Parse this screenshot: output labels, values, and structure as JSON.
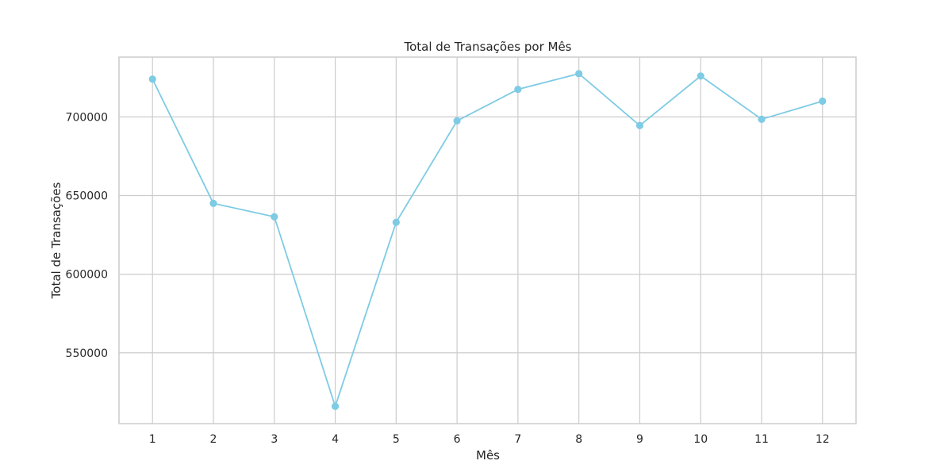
{
  "chart_data": {
    "type": "line",
    "title": "Total de Transações por Mês",
    "xlabel": "Mês",
    "ylabel": "Total de Transações",
    "x": [
      1,
      2,
      3,
      4,
      5,
      6,
      7,
      8,
      9,
      10,
      11,
      12
    ],
    "x_tick_labels": [
      "1",
      "2",
      "3",
      "4",
      "5",
      "6",
      "7",
      "8",
      "9",
      "10",
      "11",
      "12"
    ],
    "series": [
      {
        "values": [
          724000,
          645000,
          636500,
          516000,
          633000,
          697500,
          717500,
          727500,
          694500,
          726000,
          698500,
          710000
        ],
        "color": "#7ecbe4",
        "marker": "circle"
      }
    ],
    "y_ticks": [
      550000,
      600000,
      650000,
      700000
    ],
    "y_tick_labels": [
      "550000",
      "600000",
      "650000",
      "700000"
    ],
    "ylim": [
      505000,
      738000
    ],
    "xlim": [
      0.45,
      12.55
    ],
    "grid": true
  }
}
